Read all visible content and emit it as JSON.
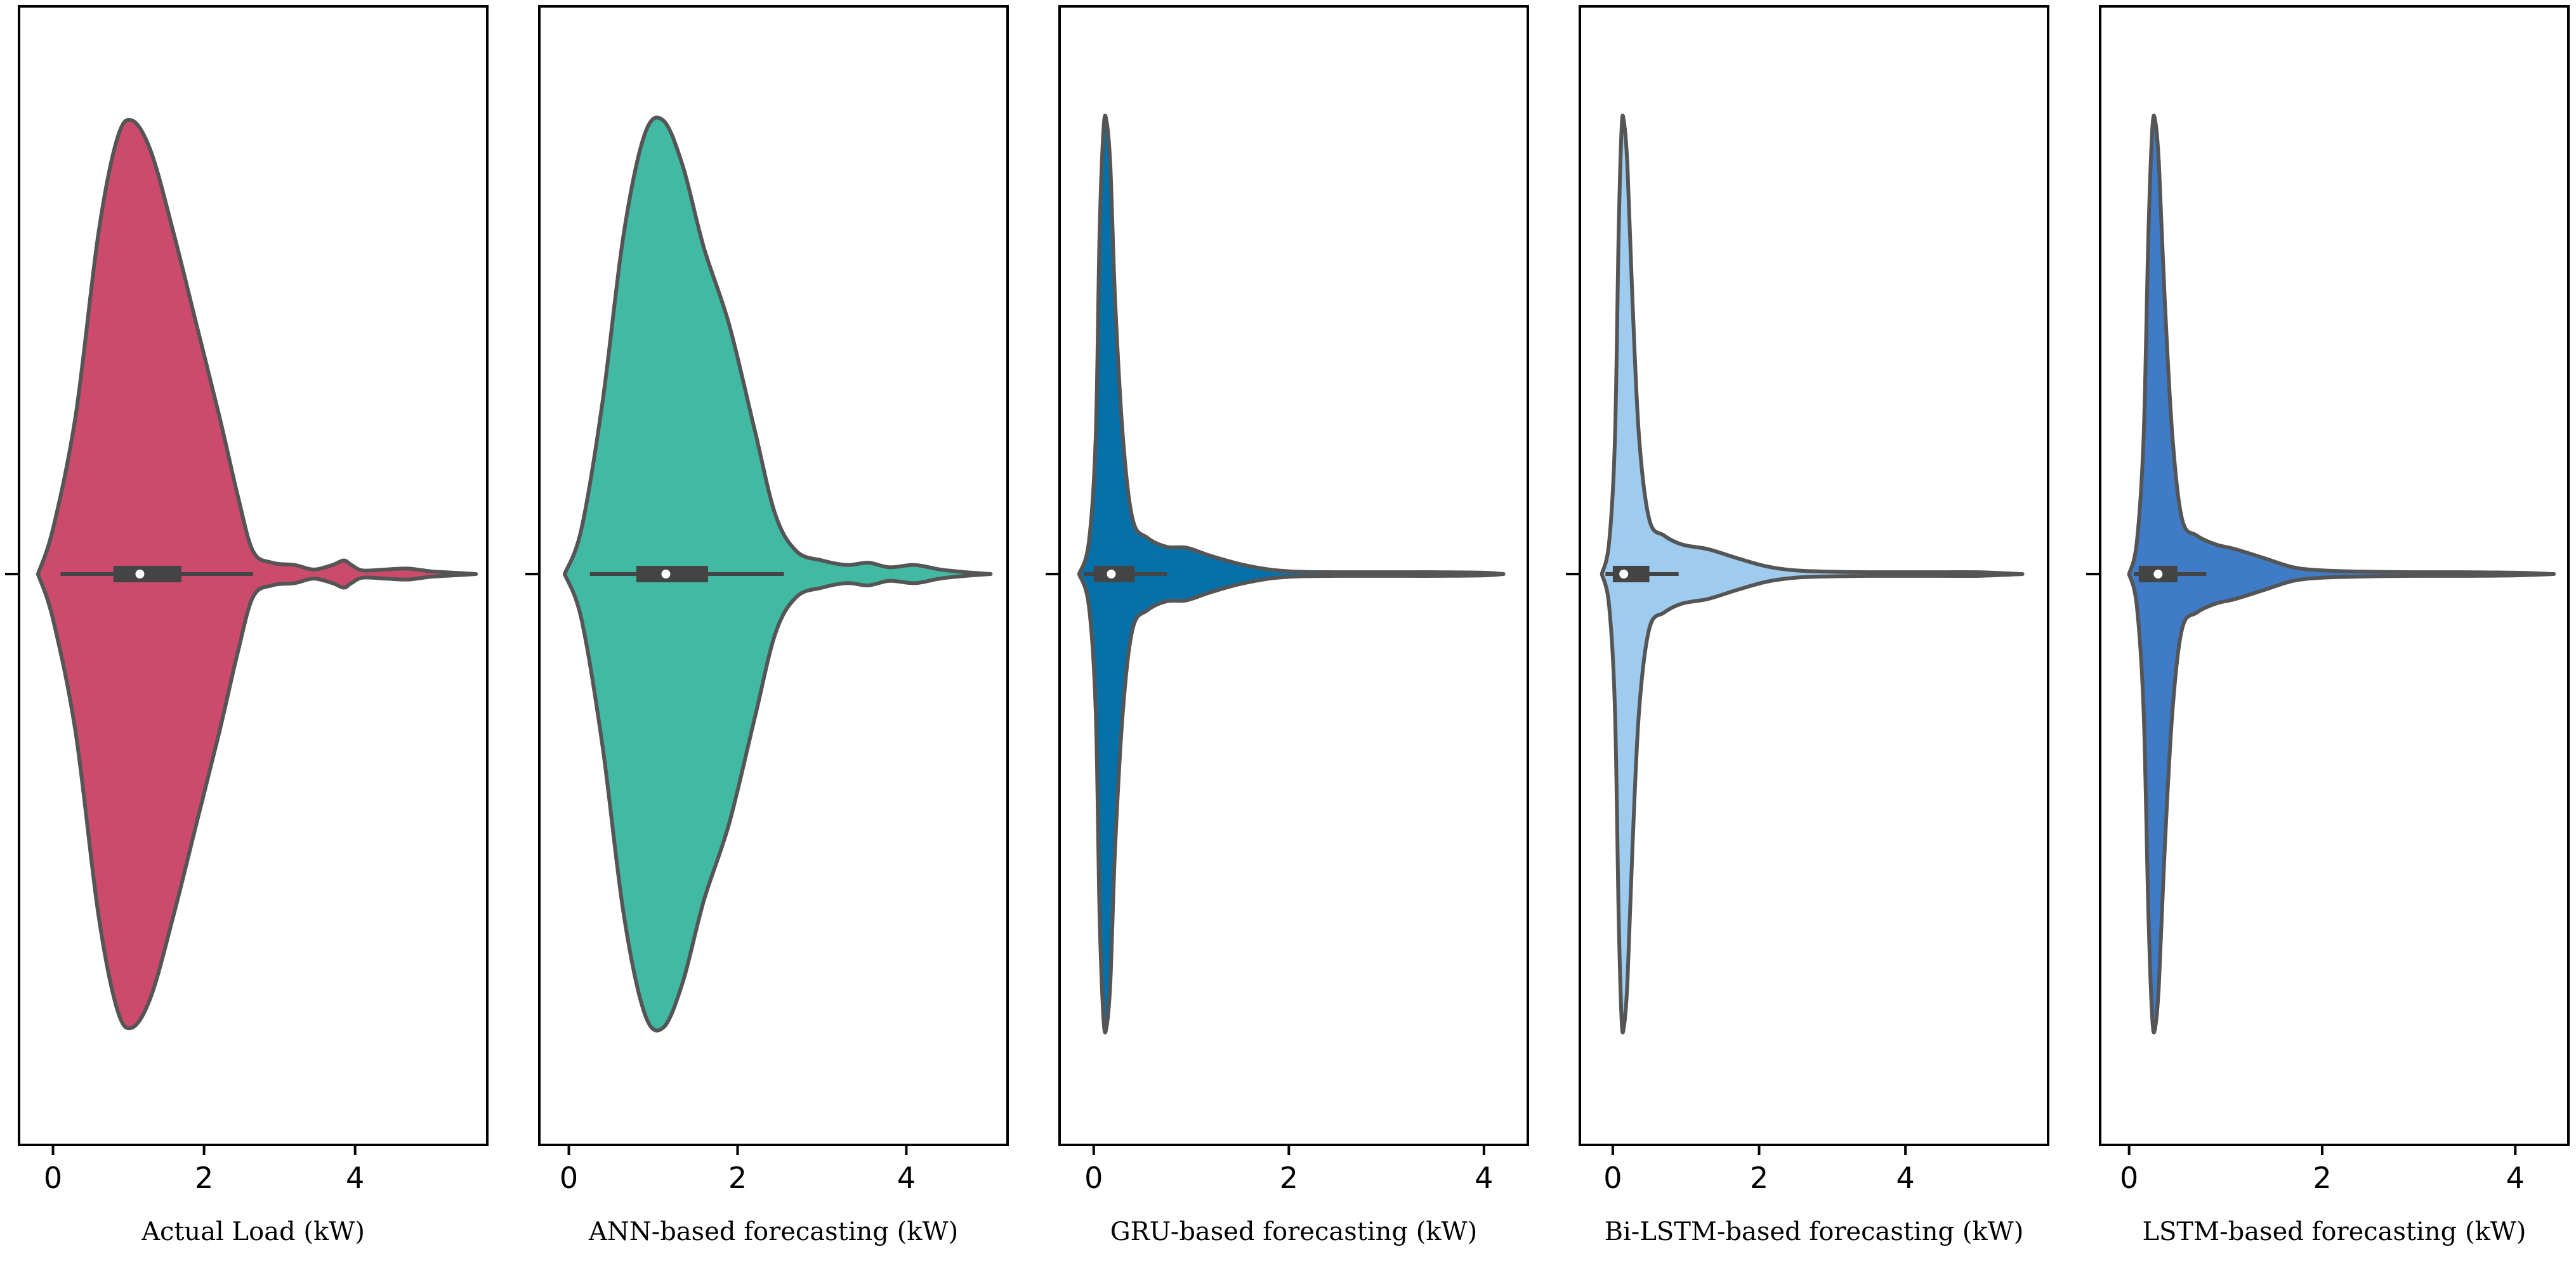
{
  "chart_data": [
    {
      "type": "violin",
      "xlabel": "Actual Load (kW)",
      "color": "#cc4a6b",
      "xlim": [
        -0.45,
        5.75
      ],
      "xticks": [
        0,
        2,
        4
      ],
      "xtick_labels": [
        "0",
        "2",
        "4"
      ],
      "box": {
        "q1": 0.8,
        "median": 1.15,
        "q3": 1.7,
        "whisker_low": 0.1,
        "whisker_high": 2.65
      },
      "density": [
        [
          -0.2,
          0.0
        ],
        [
          0.0,
          0.1
        ],
        [
          0.3,
          0.35
        ],
        [
          0.6,
          0.75
        ],
        [
          0.85,
          0.96
        ],
        [
          1.05,
          1.0
        ],
        [
          1.3,
          0.93
        ],
        [
          1.6,
          0.75
        ],
        [
          1.9,
          0.55
        ],
        [
          2.2,
          0.35
        ],
        [
          2.45,
          0.17
        ],
        [
          2.65,
          0.05
        ],
        [
          2.9,
          0.025
        ],
        [
          3.2,
          0.02
        ],
        [
          3.45,
          0.01
        ],
        [
          3.7,
          0.02
        ],
        [
          3.85,
          0.03
        ],
        [
          3.95,
          0.02
        ],
        [
          4.1,
          0.008
        ],
        [
          4.4,
          0.01
        ],
        [
          4.7,
          0.012
        ],
        [
          5.0,
          0.006
        ],
        [
          5.3,
          0.003
        ],
        [
          5.6,
          0.0
        ]
      ]
    },
    {
      "type": "violin",
      "xlabel": "ANN-based forecasting (kW)",
      "color": "#41b9a3",
      "xlim": [
        -0.35,
        5.2
      ],
      "xticks": [
        0,
        2,
        4
      ],
      "xtick_labels": [
        "0",
        "2",
        "4"
      ],
      "box": {
        "q1": 0.8,
        "median": 1.15,
        "q3": 1.65,
        "whisker_low": 0.25,
        "whisker_high": 2.55
      },
      "density": [
        [
          -0.05,
          0.0
        ],
        [
          0.15,
          0.1
        ],
        [
          0.4,
          0.38
        ],
        [
          0.65,
          0.75
        ],
        [
          0.9,
          0.97
        ],
        [
          1.12,
          1.0
        ],
        [
          1.35,
          0.9
        ],
        [
          1.6,
          0.72
        ],
        [
          1.9,
          0.55
        ],
        [
          2.2,
          0.32
        ],
        [
          2.45,
          0.13
        ],
        [
          2.7,
          0.05
        ],
        [
          3.0,
          0.03
        ],
        [
          3.3,
          0.02
        ],
        [
          3.55,
          0.025
        ],
        [
          3.8,
          0.015
        ],
        [
          4.1,
          0.02
        ],
        [
          4.4,
          0.01
        ],
        [
          4.7,
          0.004
        ],
        [
          5.0,
          0.0
        ]
      ]
    },
    {
      "type": "violin",
      "xlabel": "GRU-based forecasting (kW)",
      "color": "#0671a8",
      "xlim": [
        -0.35,
        4.45
      ],
      "xticks": [
        0,
        2,
        4
      ],
      "xtick_labels": [
        "0",
        "2",
        "4"
      ],
      "box": {
        "q1": 0.0,
        "median": 0.18,
        "q3": 0.42,
        "whisker_low": -0.1,
        "whisker_high": 0.75
      },
      "density": [
        [
          -0.15,
          0.0
        ],
        [
          -0.05,
          0.07
        ],
        [
          0.02,
          0.3
        ],
        [
          0.06,
          0.75
        ],
        [
          0.1,
          0.98
        ],
        [
          0.13,
          1.0
        ],
        [
          0.17,
          0.9
        ],
        [
          0.22,
          0.6
        ],
        [
          0.3,
          0.3
        ],
        [
          0.4,
          0.12
        ],
        [
          0.55,
          0.08
        ],
        [
          0.75,
          0.06
        ],
        [
          0.95,
          0.058
        ],
        [
          1.2,
          0.04
        ],
        [
          1.5,
          0.022
        ],
        [
          1.8,
          0.01
        ],
        [
          2.1,
          0.005
        ],
        [
          2.5,
          0.004
        ],
        [
          3.0,
          0.004
        ],
        [
          3.5,
          0.004
        ],
        [
          4.0,
          0.003
        ],
        [
          4.2,
          0.0
        ]
      ]
    },
    {
      "type": "violin",
      "xlabel": "Bi-LSTM-based forecasting (kW)",
      "color": "#9ecbee",
      "xlim": [
        -0.45,
        5.95
      ],
      "xticks": [
        0,
        2,
        4
      ],
      "xtick_labels": [
        "0",
        "2",
        "4"
      ],
      "box": {
        "q1": 0.0,
        "median": 0.15,
        "q3": 0.5,
        "whisker_low": -0.1,
        "whisker_high": 0.9
      },
      "density": [
        [
          -0.15,
          0.0
        ],
        [
          -0.05,
          0.07
        ],
        [
          0.03,
          0.3
        ],
        [
          0.08,
          0.75
        ],
        [
          0.12,
          0.98
        ],
        [
          0.15,
          1.0
        ],
        [
          0.2,
          0.9
        ],
        [
          0.27,
          0.6
        ],
        [
          0.36,
          0.3
        ],
        [
          0.5,
          0.12
        ],
        [
          0.7,
          0.085
        ],
        [
          0.95,
          0.065
        ],
        [
          1.3,
          0.055
        ],
        [
          1.7,
          0.035
        ],
        [
          2.1,
          0.017
        ],
        [
          2.5,
          0.008
        ],
        [
          3.0,
          0.005
        ],
        [
          3.5,
          0.004
        ],
        [
          4.0,
          0.004
        ],
        [
          4.5,
          0.004
        ],
        [
          5.0,
          0.004
        ],
        [
          5.6,
          0.0
        ]
      ]
    },
    {
      "type": "violin",
      "xlabel": "LSTM-based forecasting (kW)",
      "color": "#3f7bc6",
      "xlim": [
        -0.3,
        4.55
      ],
      "xticks": [
        0,
        2,
        4
      ],
      "xtick_labels": [
        "0",
        "2",
        "4"
      ],
      "box": {
        "q1": 0.1,
        "median": 0.3,
        "q3": 0.5,
        "whisker_low": 0.05,
        "whisker_high": 0.8
      },
      "density": [
        [
          0.0,
          0.0
        ],
        [
          0.08,
          0.07
        ],
        [
          0.15,
          0.3
        ],
        [
          0.2,
          0.75
        ],
        [
          0.24,
          0.98
        ],
        [
          0.27,
          1.0
        ],
        [
          0.31,
          0.9
        ],
        [
          0.37,
          0.6
        ],
        [
          0.45,
          0.3
        ],
        [
          0.55,
          0.12
        ],
        [
          0.7,
          0.085
        ],
        [
          0.9,
          0.065
        ],
        [
          1.1,
          0.055
        ],
        [
          1.4,
          0.035
        ],
        [
          1.7,
          0.015
        ],
        [
          2.0,
          0.008
        ],
        [
          2.5,
          0.005
        ],
        [
          3.0,
          0.004
        ],
        [
          3.5,
          0.004
        ],
        [
          4.0,
          0.003
        ],
        [
          4.4,
          0.0
        ]
      ]
    }
  ],
  "style": {
    "outline_color": "#555555",
    "box_color": "#444444",
    "median_color": "#ffffff",
    "axis_color": "#000000"
  }
}
